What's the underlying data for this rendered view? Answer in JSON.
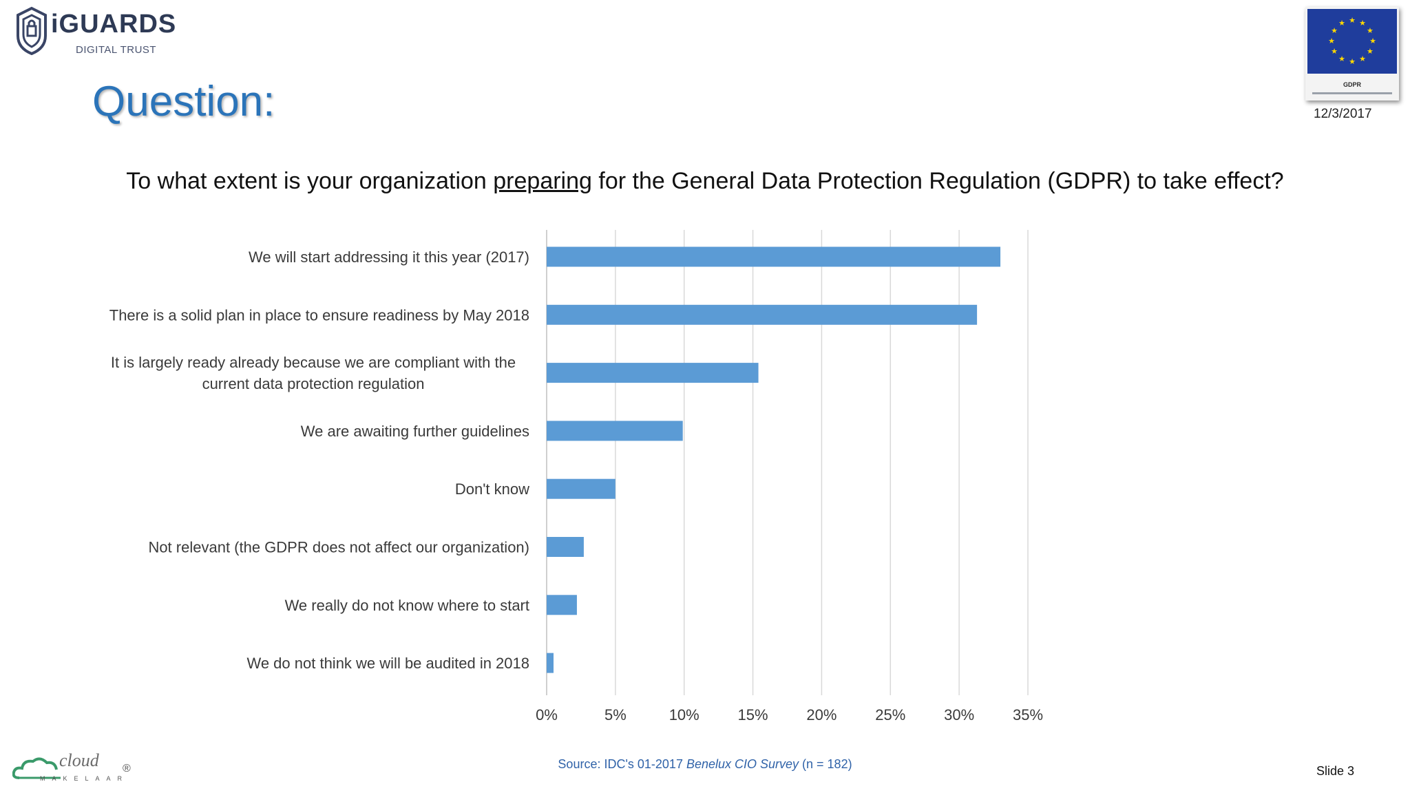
{
  "header": {
    "logo_word": "iGUARDS",
    "logo_subtitle": "DIGITAL TRUST",
    "gdpr_badge_label": "GDPR",
    "date": "12/3/2017",
    "title": "Question:"
  },
  "question": {
    "before": "To what extent is your organization ",
    "underlined": "preparing",
    "after": " for the General Data Protection Regulation (GDPR) to take effect?"
  },
  "chart_data": {
    "type": "bar",
    "orientation": "horizontal",
    "categories": [
      [
        "We will start addressing it this year (2017)"
      ],
      [
        "There is a solid plan in place to ensure readiness by May 2018"
      ],
      [
        "It is largely ready already because we are compliant with the",
        "current data protection regulation"
      ],
      [
        "We are awaiting further guidelines"
      ],
      [
        "Don't know"
      ],
      [
        "Not relevant (the GDPR does not affect our organization)"
      ],
      [
        "We really do not know where to start"
      ],
      [
        "We do not think we will be audited in 2018"
      ]
    ],
    "values": [
      33,
      31.3,
      15.4,
      9.9,
      5,
      2.7,
      2.2,
      0.5
    ],
    "x_ticks": [
      "0%",
      "5%",
      "10%",
      "15%",
      "20%",
      "25%",
      "30%",
      "35%"
    ],
    "xlim": [
      0,
      35
    ],
    "grid": true,
    "bar_color": "#5b9bd5"
  },
  "footer": {
    "source_prefix": "Source: IDC's 01-2017 ",
    "source_italic": "Benelux CIO Survey",
    "source_suffix": " (n = 182)",
    "cloud_logo_text": "cloud",
    "cloud_logo_sub": "MAKELAAR",
    "cloud_logo_reg": "®",
    "slide": "Slide 3"
  }
}
